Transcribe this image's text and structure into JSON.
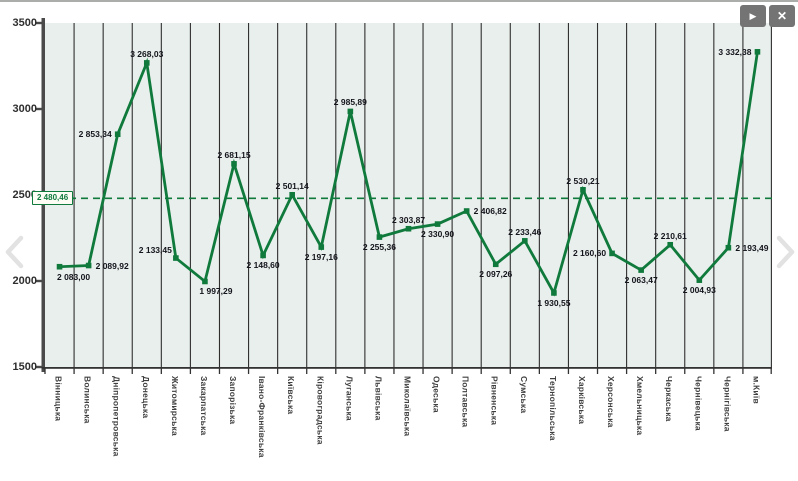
{
  "window": {
    "controls": {
      "next_icon": "▶",
      "close_icon": "✕"
    }
  },
  "chart_data": {
    "type": "line",
    "title": "",
    "xlabel": "",
    "ylabel": "",
    "categories": [
      "Вінницька",
      "Волинська",
      "Дніпропетровська",
      "Донецька",
      "Житомирська",
      "Закарпатська",
      "Запорізька",
      "Івано-Франківська",
      "Київська",
      "Кіровоградська",
      "Луганська",
      "Львівська",
      "Миколаївська",
      "Одеська",
      "Полтавська",
      "Рівненська",
      "Сумська",
      "Тернопільська",
      "Харківська",
      "Херсонська",
      "Хмельницька",
      "Черкаська",
      "Чернівецька",
      "Чернігівська",
      "м.Київ"
    ],
    "values": [
      2083.0,
      2089.92,
      2853.34,
      3268.03,
      2133.45,
      1997.29,
      2681.15,
      2148.6,
      2501.14,
      2197.16,
      2985.89,
      2255.36,
      2303.87,
      2330.9,
      2406.82,
      2097.26,
      2233.46,
      1930.55,
      2530.21,
      2160.6,
      2063.47,
      2210.61,
      2004.93,
      2193.49,
      3332.38
    ],
    "value_labels": [
      "2 083,00",
      "2 089,92",
      "2 853,34",
      "3 268,03",
      "2 133,45",
      "1 997,29",
      "2 681,15",
      "2 148,60",
      "2 501,14",
      "2 197,16",
      "2 985,89",
      "2 255,36",
      "2 303,87",
      "2 330,90",
      "2 406,82",
      "2 097,26",
      "2 233,46",
      "1 930,55",
      "2 530,21",
      "2 160,60",
      "2 063,47",
      "2 210,61",
      "2 004,93",
      "2 193,49",
      "3 332,38"
    ],
    "label_placement": [
      {
        "p": "below",
        "dx": 14
      },
      {
        "p": "right"
      },
      {
        "p": "left"
      },
      {
        "p": "above"
      },
      {
        "p": "upleft"
      },
      {
        "p": "below",
        "dx": 11
      },
      {
        "p": "above"
      },
      {
        "p": "below"
      },
      {
        "p": "above"
      },
      {
        "p": "below"
      },
      {
        "p": "above"
      },
      {
        "p": "below"
      },
      {
        "p": "above"
      },
      {
        "p": "below"
      },
      {
        "p": "right"
      },
      {
        "p": "below"
      },
      {
        "p": "above"
      },
      {
        "p": "below"
      },
      {
        "p": "above"
      },
      {
        "p": "left"
      },
      {
        "p": "below"
      },
      {
        "p": "above"
      },
      {
        "p": "below"
      },
      {
        "p": "right"
      },
      {
        "p": "left"
      }
    ],
    "average": 2480.46,
    "average_label": "2 480,46",
    "y_ticks": [
      3500,
      3000,
      2500,
      2000,
      1500
    ],
    "ylim": [
      1500,
      3500
    ],
    "grid": "vertical",
    "legend": "none",
    "line_color": "#0f7a3c",
    "marker": "square",
    "average_line_color": "#0f7a3c",
    "plot_background": "#e9efec",
    "gridline_color": "#2f2f2f",
    "axis_color": "#4a4a4a"
  }
}
